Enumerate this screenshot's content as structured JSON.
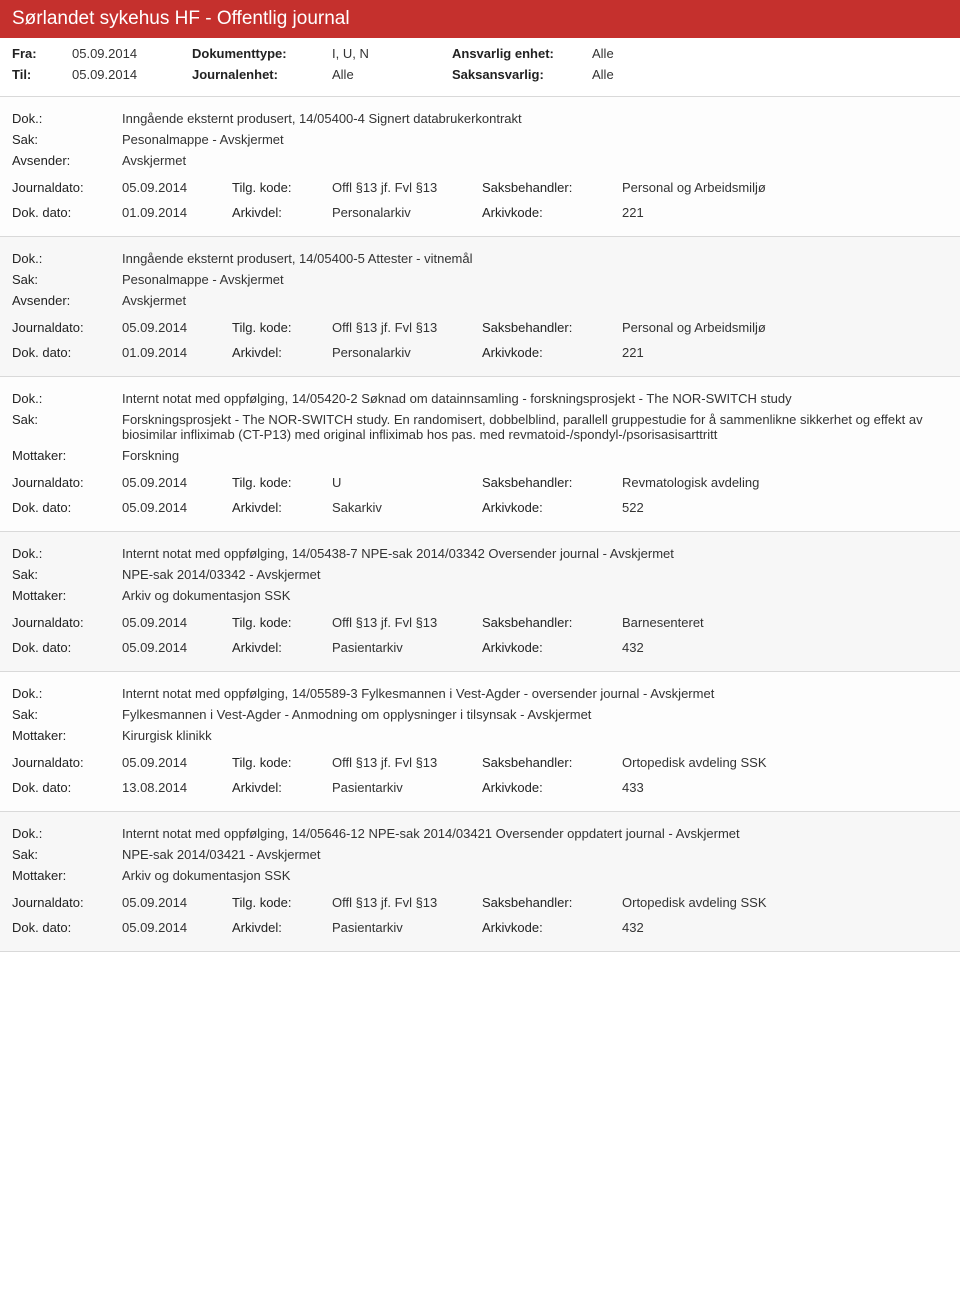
{
  "header": {
    "title": "Sørlandet sykehus HF - Offentlig journal"
  },
  "labels": {
    "fra": "Fra:",
    "til": "Til:",
    "dokumenttype": "Dokumenttype:",
    "journalenhet": "Journalenhet:",
    "ansvarlig_enhet": "Ansvarlig enhet:",
    "saksansvarlig": "Saksansvarlig:",
    "dok": "Dok.:",
    "sak": "Sak:",
    "avsender": "Avsender:",
    "mottaker": "Mottaker:",
    "journaldato": "Journaldato:",
    "dok_dato": "Dok. dato:",
    "tilg_kode": "Tilg. kode:",
    "arkivdel": "Arkivdel:",
    "saksbehandler": "Saksbehandler:",
    "arkivkode": "Arkivkode:"
  },
  "filters": {
    "fra": "05.09.2014",
    "til": "05.09.2014",
    "dokumenttype": "I, U, N",
    "journalenhet": "Alle",
    "ansvarlig_enhet": "Alle",
    "saksansvarlig": "Alle"
  },
  "entries": [
    {
      "dok": "Inngående eksternt produsert, 14/05400-4 Signert databrukerkontrakt",
      "sak": "Pesonalmappe - Avskjermet",
      "party_label": "Avsender:",
      "party": "Avskjermet",
      "journaldato": "05.09.2014",
      "tilg_kode": "Offl §13 jf. Fvl §13",
      "saksbehandler": "Personal og Arbeidsmiljø",
      "dok_dato": "01.09.2014",
      "arkivdel": "Personalarkiv",
      "arkivkode": "221"
    },
    {
      "dok": "Inngående eksternt produsert, 14/05400-5 Attester - vitnemål",
      "sak": "Pesonalmappe - Avskjermet",
      "party_label": "Avsender:",
      "party": "Avskjermet",
      "journaldato": "05.09.2014",
      "tilg_kode": "Offl §13 jf. Fvl §13",
      "saksbehandler": "Personal og Arbeidsmiljø",
      "dok_dato": "01.09.2014",
      "arkivdel": "Personalarkiv",
      "arkivkode": "221"
    },
    {
      "dok": "Internt notat med oppfølging, 14/05420-2 Søknad om datainnsamling - forskningsprosjekt - The NOR-SWITCH study",
      "sak": "Forskningsprosjekt - The NOR-SWITCH study. En randomisert, dobbelblind, parallell gruppestudie for å sammenlikne sikkerhet og effekt av biosimilar infliximab (CT-P13) med original infliximab hos pas. med revmatoid-/spondyl-/psorisasisarttritt",
      "party_label": "Mottaker:",
      "party": "Forskning",
      "journaldato": "05.09.2014",
      "tilg_kode": "U",
      "saksbehandler": "Revmatologisk avdeling",
      "dok_dato": "05.09.2014",
      "arkivdel": "Sakarkiv",
      "arkivkode": "522"
    },
    {
      "dok": "Internt notat med oppfølging, 14/05438-7 NPE-sak 2014/03342 Oversender journal - Avskjermet",
      "sak": "NPE-sak 2014/03342 - Avskjermet",
      "party_label": "Mottaker:",
      "party": "Arkiv og dokumentasjon SSK",
      "journaldato": "05.09.2014",
      "tilg_kode": "Offl §13 jf. Fvl §13",
      "saksbehandler": "Barnesenteret",
      "dok_dato": "05.09.2014",
      "arkivdel": "Pasientarkiv",
      "arkivkode": "432"
    },
    {
      "dok": "Internt notat med oppfølging, 14/05589-3 Fylkesmannen i Vest-Agder - oversender journal - Avskjermet",
      "sak": "Fylkesmannen i Vest-Agder - Anmodning om opplysninger i tilsynsak - Avskjermet",
      "party_label": "Mottaker:",
      "party": "Kirurgisk klinikk",
      "journaldato": "05.09.2014",
      "tilg_kode": "Offl §13 jf. Fvl §13",
      "saksbehandler": "Ortopedisk avdeling SSK",
      "dok_dato": "13.08.2014",
      "arkivdel": "Pasientarkiv",
      "arkivkode": "433"
    },
    {
      "dok": "Internt notat med oppfølging, 14/05646-12 NPE-sak 2014/03421 Oversender oppdatert journal - Avskjermet",
      "sak": "NPE-sak 2014/03421 - Avskjermet",
      "party_label": "Mottaker:",
      "party": "Arkiv og dokumentasjon SSK",
      "journaldato": "05.09.2014",
      "tilg_kode": "Offl §13 jf. Fvl §13",
      "saksbehandler": "Ortopedisk avdeling SSK",
      "dok_dato": "05.09.2014",
      "arkivdel": "Pasientarkiv",
      "arkivkode": "432"
    }
  ]
}
